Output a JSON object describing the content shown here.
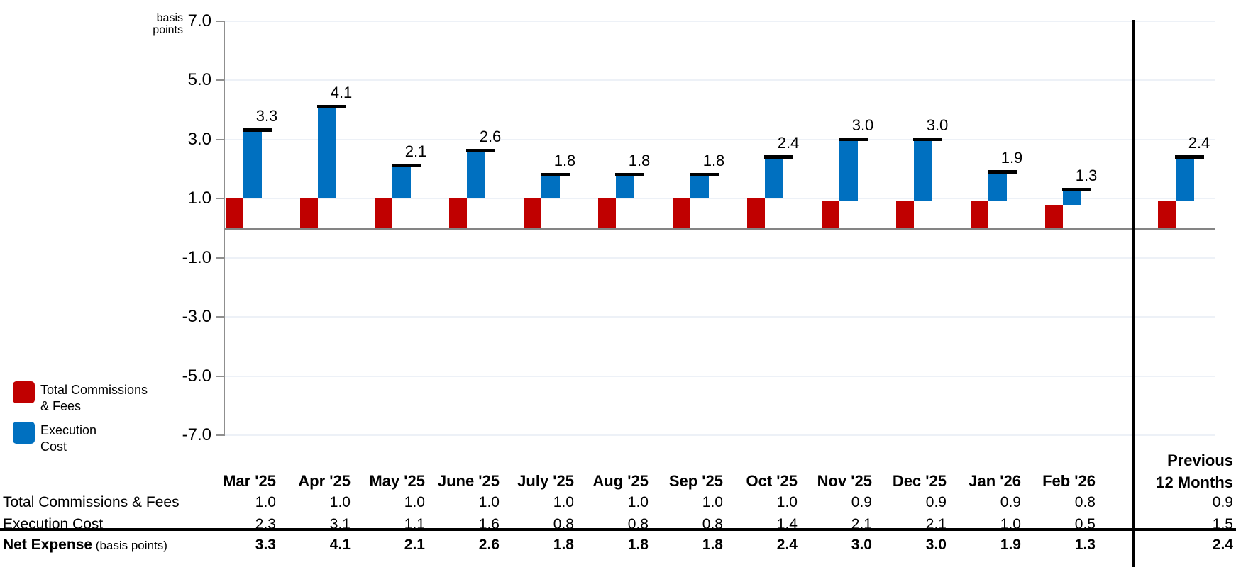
{
  "chart": {
    "unit_label_line1": "basis",
    "unit_label_line2": "points"
  },
  "chart_data": {
    "type": "bar",
    "subtype": "stacked columns with net-total marker line and data labels",
    "title": "",
    "xlabel": "",
    "ylabel": "basis points",
    "ylim": [
      -7.0,
      7.0
    ],
    "yticks": [
      7.0,
      5.0,
      3.0,
      1.0,
      -1.0,
      -3.0,
      -5.0,
      -7.0
    ],
    "grid": true,
    "legend_position": "bottom-left",
    "categories": [
      "Mar '25",
      "Apr '25",
      "May '25",
      "June '25",
      "July '25",
      "Aug '25",
      "Sep '25",
      "Oct '25",
      "Nov '25",
      "Dec '25",
      "Jan '26",
      "Feb '26",
      "Previous 12 Months"
    ],
    "series": [
      {
        "name": "Total Commissions & Fees",
        "type": "column",
        "color": "#C00000",
        "values": [
          1.0,
          1.0,
          1.0,
          1.0,
          1.0,
          1.0,
          1.0,
          1.0,
          0.9,
          0.9,
          0.9,
          0.8,
          0.9
        ]
      },
      {
        "name": "Execution Cost",
        "type": "column",
        "color": "#0070C0",
        "values": [
          2.3,
          3.1,
          1.1,
          1.6,
          0.8,
          0.8,
          0.8,
          1.4,
          2.1,
          2.1,
          1.0,
          0.5,
          1.5
        ]
      },
      {
        "name": "Net Expense (basis points)",
        "type": "total-marker",
        "color": "#000000",
        "values": [
          3.3,
          4.1,
          2.1,
          2.6,
          1.8,
          1.8,
          1.8,
          2.4,
          3.0,
          3.0,
          1.9,
          1.3,
          2.4
        ]
      }
    ]
  },
  "legend": {
    "items": [
      {
        "line1": "Total Commissions",
        "line2": "& Fees",
        "color": "#C00000"
      },
      {
        "line1": "Execution",
        "line2": "Cost",
        "color": "#0070C0"
      }
    ]
  },
  "table": {
    "last_column_header_line1": "Previous",
    "last_column_header_line2": "12 Months",
    "rows": [
      {
        "label": "Total Commissions & Fees",
        "suffix": "",
        "bold": false
      },
      {
        "label": "Execution Cost",
        "suffix": "",
        "bold": false
      },
      {
        "label": "Net Expense",
        "suffix": "(basis points)",
        "bold": true
      }
    ]
  },
  "colors": {
    "commissions_red": "#C00000",
    "execution_blue": "#0070C0",
    "net_marker_black": "#000000",
    "gridline": "#EDF1F7",
    "axis_gray": "#8F8F8F"
  }
}
